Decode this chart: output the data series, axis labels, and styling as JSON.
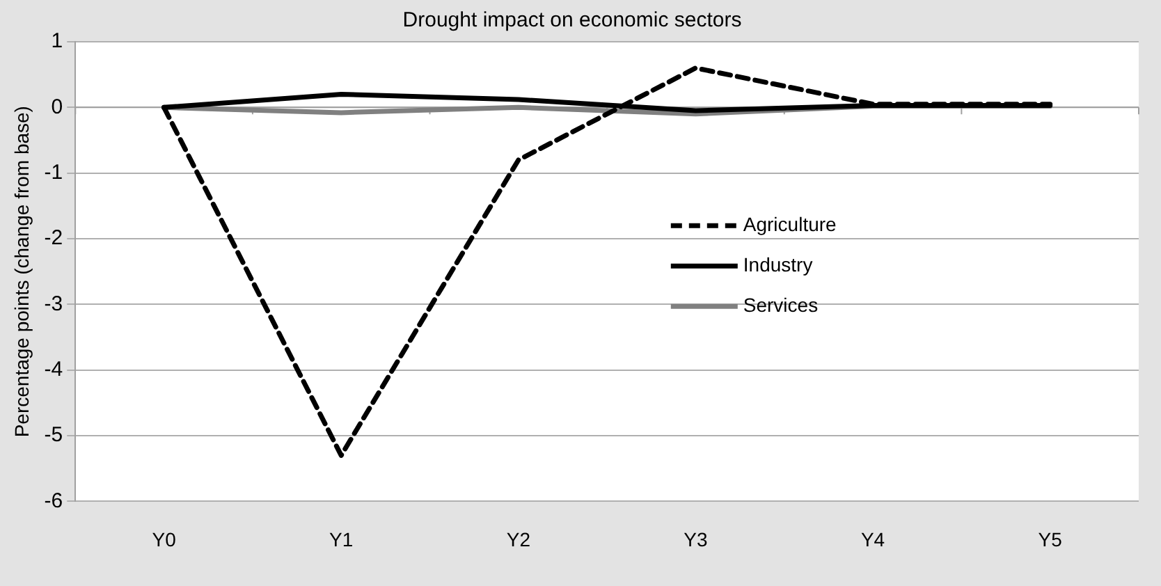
{
  "chart_data": {
    "type": "line",
    "title": "Drought impact on economic sectors",
    "ylabel": "Percentage points (change from base)",
    "categories": [
      "Y0",
      "Y1",
      "Y2",
      "Y3",
      "Y4",
      "Y5"
    ],
    "series": [
      {
        "name": "Agriculture",
        "color": "#000000",
        "line_style": "dashed",
        "values": [
          0,
          -5.3,
          -0.8,
          0.6,
          0.05,
          0.05
        ]
      },
      {
        "name": "Industry",
        "color": "#000000",
        "values": [
          0,
          0.2,
          0.12,
          -0.05,
          0.03,
          0.03
        ]
      },
      {
        "name": "Services",
        "color": "#808080",
        "values": [
          0,
          -0.08,
          0,
          -0.1,
          0.02,
          0.02
        ]
      }
    ],
    "ylim": [
      -6,
      1
    ],
    "yticks": [
      -6,
      -5,
      -4,
      -3,
      -2,
      -1,
      0,
      1
    ],
    "grid": "y",
    "legend": "right",
    "marker": "none"
  }
}
